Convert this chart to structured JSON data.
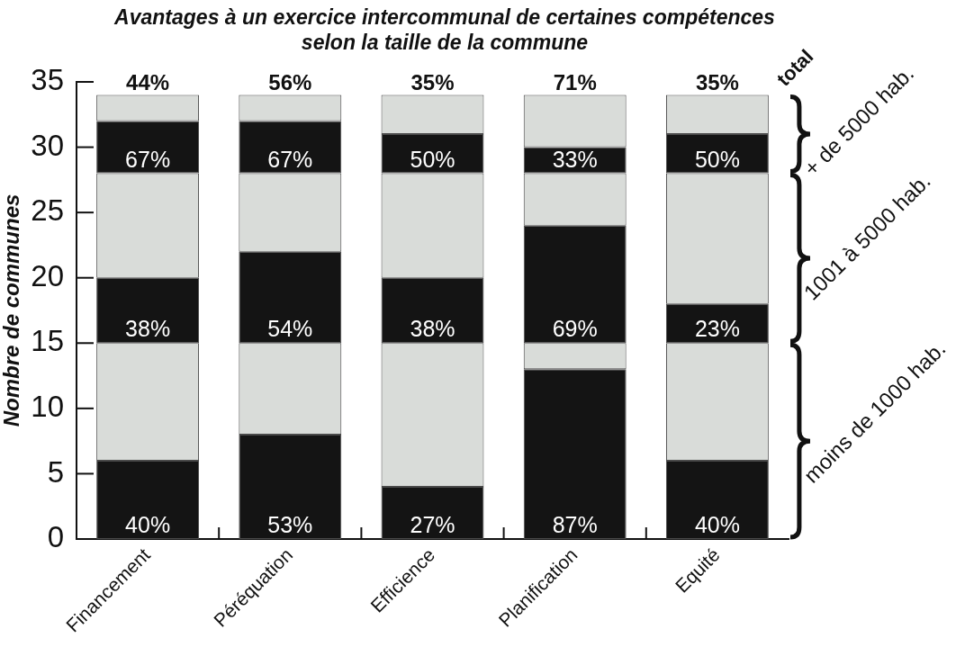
{
  "chart_data": {
    "type": "bar",
    "title": "Avantages à un exercice intercommunal de certaines compétences selon la taille de la commune",
    "ylabel": "Nombre de communes",
    "categories": [
      "Financement",
      "Péréquation",
      "Efficience",
      "Planification",
      "Equité"
    ],
    "stacked": true,
    "ylim": [
      0,
      35
    ],
    "yticks": [
      0,
      5,
      10,
      15,
      20,
      25,
      30,
      35
    ],
    "series": [
      {
        "color": "#141414",
        "values": [
          6,
          8,
          4,
          13,
          6
        ]
      },
      {
        "color": "#d9dcd9",
        "values": [
          9,
          7,
          11,
          2,
          9
        ]
      },
      {
        "color": "#141414",
        "values": [
          5,
          7,
          5,
          9,
          3
        ]
      },
      {
        "color": "#d9dcd9",
        "values": [
          8,
          6,
          8,
          4,
          10
        ]
      },
      {
        "color": "#141414",
        "values": [
          4,
          4,
          3,
          2,
          3
        ]
      },
      {
        "color": "#d9dcd9",
        "values": [
          2,
          2,
          3,
          4,
          3
        ]
      }
    ],
    "annotations": [
      "total",
      "+ de 5000 hab.",
      "1001 à 5000 hab.",
      "moins de 1000 hab.",
      {
        "text": "44%",
        "x": "Financement",
        "y": 34
      },
      {
        "text": "56%",
        "x": "Péréquation",
        "y": 34
      },
      {
        "text": "35%",
        "x": "Efficience",
        "y": 34
      },
      {
        "text": "71%",
        "x": "Planification",
        "y": 34
      },
      {
        "text": "35%",
        "x": "Equité",
        "y": 34
      },
      {
        "text": "40%",
        "x": "Financement",
        "y": 0
      },
      {
        "text": "53%",
        "x": "Péréquation",
        "y": 0
      },
      {
        "text": "27%",
        "x": "Efficience",
        "y": 0
      },
      {
        "text": "87%",
        "x": "Planification",
        "y": 0
      },
      {
        "text": "40%",
        "x": "Equité",
        "y": 0
      },
      {
        "text": "38%",
        "x": "Financement",
        "y": 15
      },
      {
        "text": "54%",
        "x": "Péréquation",
        "y": 15
      },
      {
        "text": "38%",
        "x": "Efficience",
        "y": 15
      },
      {
        "text": "69%",
        "x": "Planification",
        "y": 15
      },
      {
        "text": "23%",
        "x": "Equité",
        "y": 15
      },
      {
        "text": "67%",
        "x": "Financement",
        "y": 28
      },
      {
        "text": "67%",
        "x": "Péréquation",
        "y": 28
      },
      {
        "text": "50%",
        "x": "Efficience",
        "y": 28
      },
      {
        "text": "33%",
        "x": "Planification",
        "y": 28
      },
      {
        "text": "50%",
        "x": "Equité",
        "y": 28
      }
    ]
  }
}
